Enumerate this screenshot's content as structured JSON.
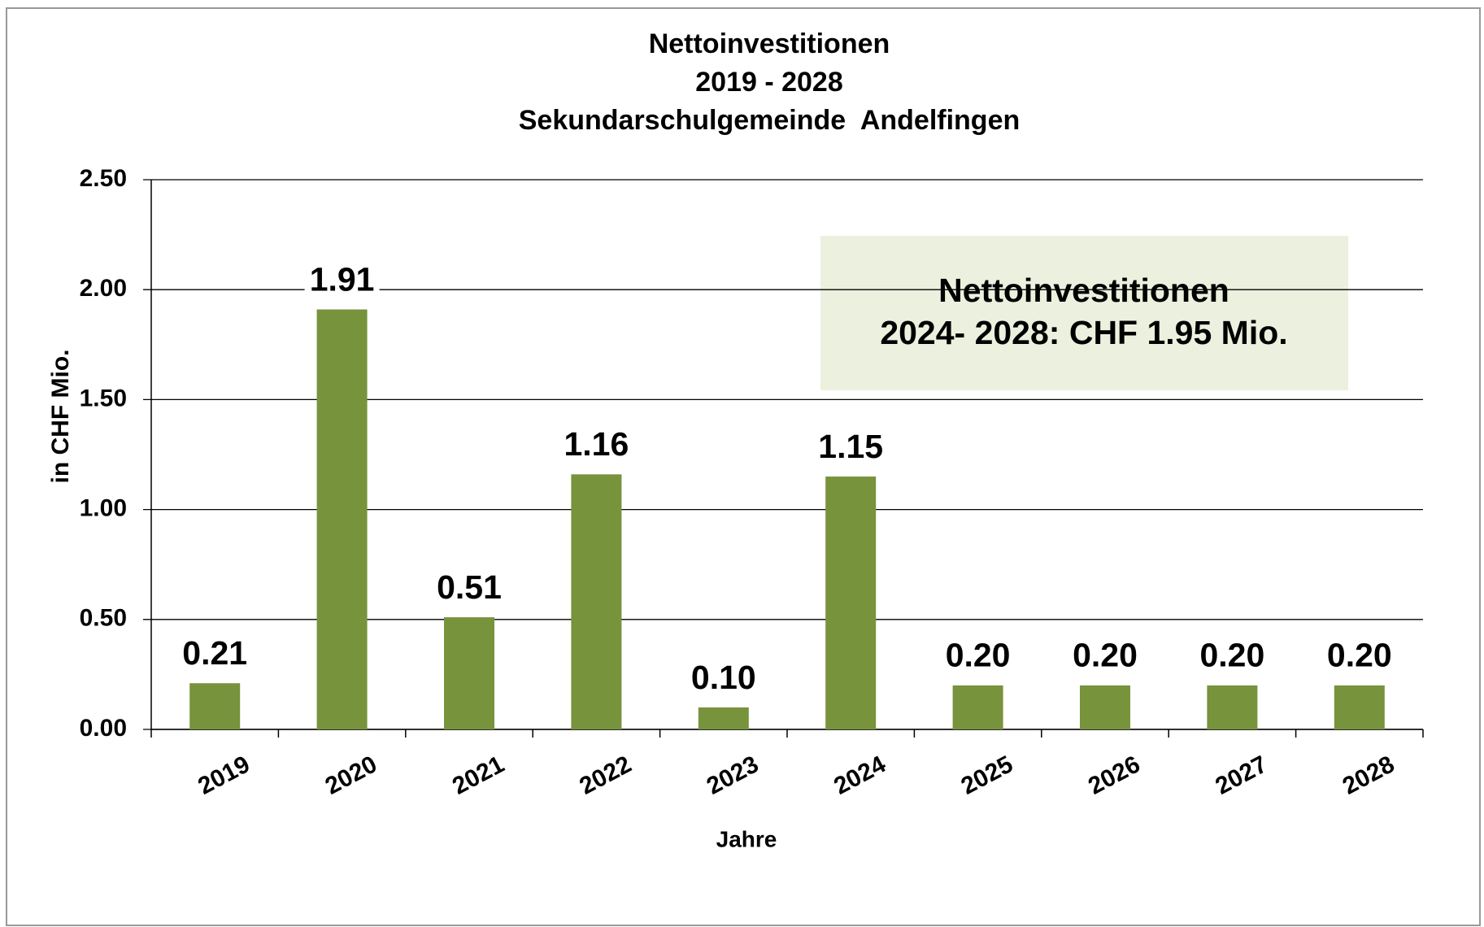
{
  "chart_data": {
    "type": "bar",
    "title": [
      "Nettoinvestitionen",
      "2019 - 2028",
      "Sekundarschulgemeinde  Andelfingen"
    ],
    "y_label": "in CHF Mio.",
    "x_label": "Jahre",
    "categories": [
      "2019",
      "2020",
      "2021",
      "2022",
      "2023",
      "2024",
      "2025",
      "2026",
      "2027",
      "2028"
    ],
    "values": [
      0.21,
      1.91,
      0.51,
      1.16,
      0.1,
      1.15,
      0.2,
      0.2,
      0.2,
      0.2
    ],
    "value_labels": [
      "0.21",
      "1.91",
      "0.51",
      "1.16",
      "0.10",
      "1.15",
      "0.20",
      "0.20",
      "0.20",
      "0.20"
    ],
    "color": "#77933c",
    "ylim": [
      0,
      2.5
    ],
    "yticks": [
      {
        "value": 0,
        "label": "0.00"
      },
      {
        "value": 0.5,
        "label": "0.50"
      },
      {
        "value": 1,
        "label": "1.00"
      },
      {
        "value": 1.5,
        "label": "1.50"
      },
      {
        "value": 2,
        "label": "2.00"
      },
      {
        "value": 2.5,
        "label": "2.50"
      }
    ],
    "grid": true,
    "annotation": [
      "Nettoinvestitionen",
      "2024- 2028: CHF 1.95 Mio."
    ]
  }
}
